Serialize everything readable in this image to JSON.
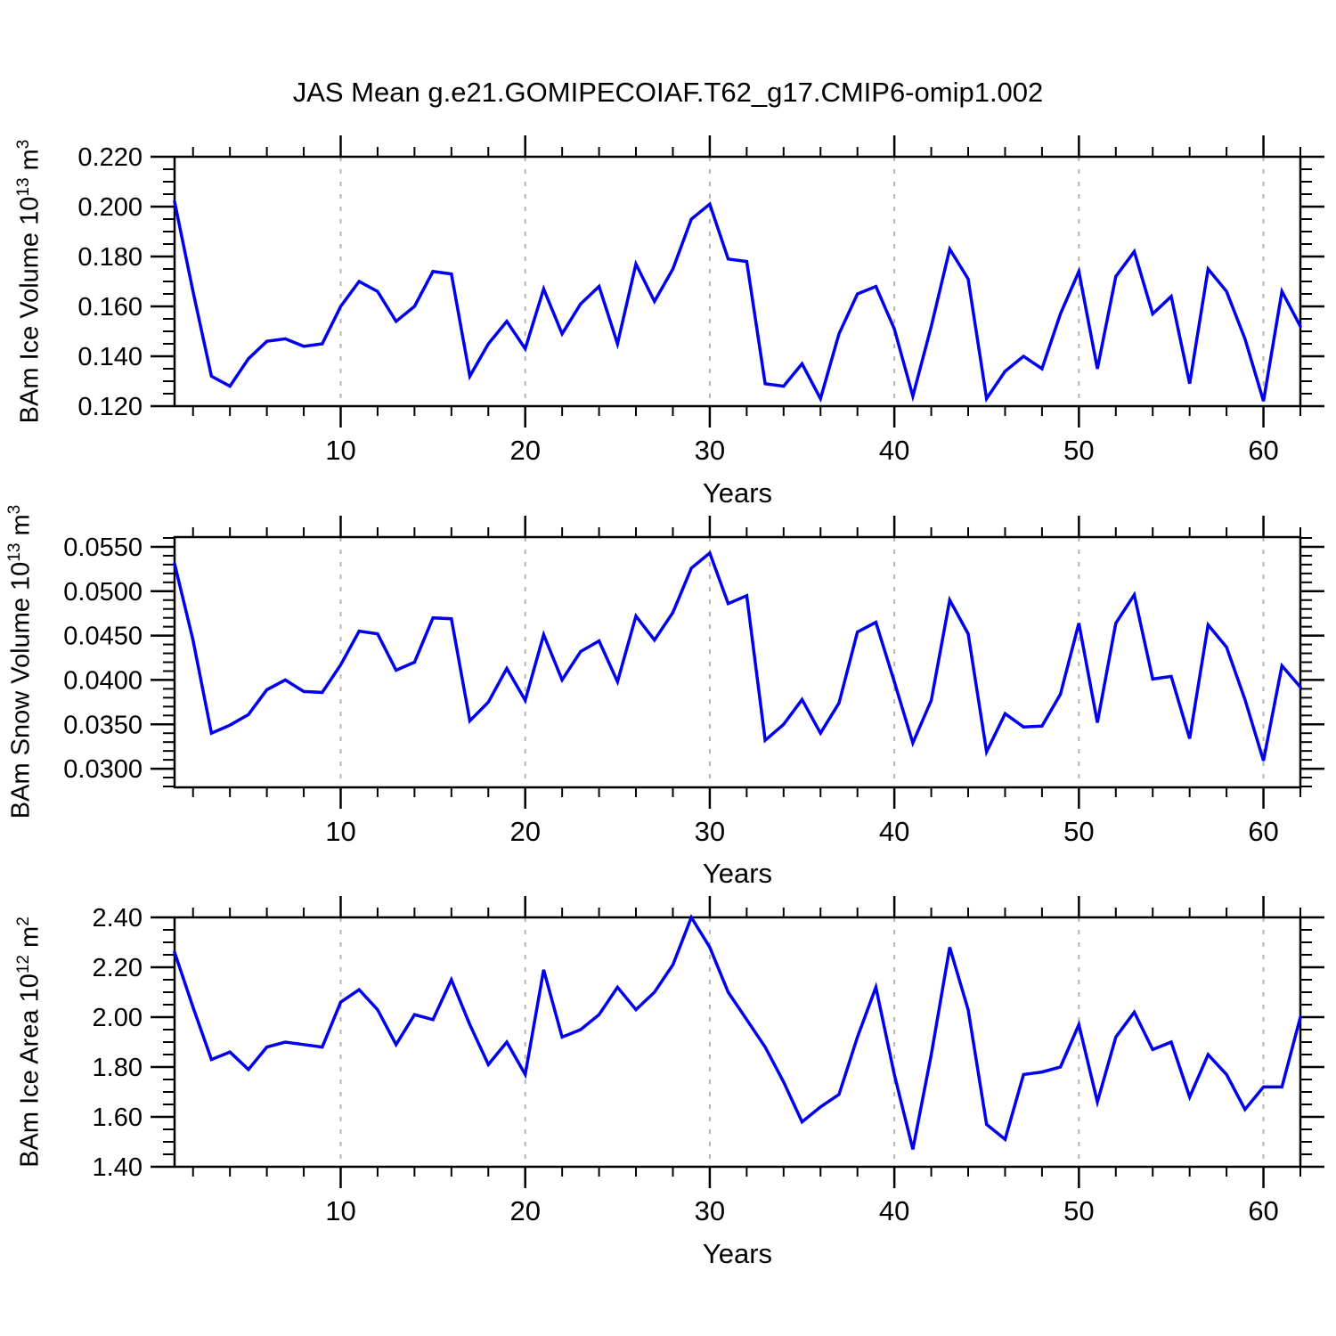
{
  "title": "JAS Mean g.e21.GOMIPECOIAF.T62_g17.CMIP6-omip1.002",
  "colors": {
    "line": "#0000ee",
    "axis": "#000000",
    "grid": "#b4b4b4",
    "background": "#ffffff"
  },
  "chart_data": [
    {
      "type": "line",
      "id": "ice-volume",
      "ylabel_parts": [
        {
          "t": "BAm Ice Volume 10"
        },
        {
          "t": "13",
          "sup": true
        },
        {
          "t": " m"
        },
        {
          "t": "3",
          "sup": true
        }
      ],
      "xlabel": "Years",
      "x_start": 1,
      "x_end": 62,
      "xticks": [
        10,
        20,
        30,
        40,
        50,
        60
      ],
      "x_minor_step": 2,
      "grid_x": [
        10,
        20,
        30,
        40,
        50,
        60
      ],
      "ylim": [
        0.12,
        0.22
      ],
      "ytick_values": [
        0.12,
        0.14,
        0.16,
        0.18,
        0.2,
        0.22
      ],
      "ytick_labels": [
        "0.120",
        "0.140",
        "0.160",
        "0.180",
        "0.200",
        "0.220"
      ],
      "y_minor_step": 0.005,
      "values": [
        0.202,
        0.166,
        0.132,
        0.128,
        0.139,
        0.146,
        0.147,
        0.144,
        0.145,
        0.16,
        0.17,
        0.166,
        0.154,
        0.16,
        0.174,
        0.173,
        0.132,
        0.145,
        0.154,
        0.143,
        0.167,
        0.149,
        0.161,
        0.168,
        0.145,
        0.177,
        0.162,
        0.175,
        0.195,
        0.201,
        0.179,
        0.178,
        0.129,
        0.128,
        0.137,
        0.123,
        0.149,
        0.165,
        0.168,
        0.151,
        0.124,
        0.152,
        0.183,
        0.171,
        0.123,
        0.134,
        0.14,
        0.135,
        0.157,
        0.174,
        0.135,
        0.172,
        0.182,
        0.157,
        0.164,
        0.129,
        0.175,
        0.166,
        0.147,
        0.122,
        0.166,
        0.152
      ]
    },
    {
      "type": "line",
      "id": "snow-volume",
      "ylabel_parts": [
        {
          "t": "BAm Snow Volume 10"
        },
        {
          "t": "13",
          "sup": true
        },
        {
          "t": " m"
        },
        {
          "t": "3",
          "sup": true
        }
      ],
      "xlabel": "Years",
      "x_start": 1,
      "x_end": 62,
      "xticks": [
        10,
        20,
        30,
        40,
        50,
        60
      ],
      "x_minor_step": 2,
      "grid_x": [
        10,
        20,
        30,
        40,
        50,
        60
      ],
      "ylim": [
        0.0279,
        0.0561
      ],
      "ytick_values": [
        0.03,
        0.035,
        0.04,
        0.045,
        0.05,
        0.055
      ],
      "ytick_labels": [
        "0.0300",
        "0.0350",
        "0.0400",
        "0.0450",
        "0.0500",
        "0.0550"
      ],
      "y_minor_step": 0.001,
      "values": [
        0.0531,
        0.0445,
        0.034,
        0.0349,
        0.0361,
        0.0389,
        0.04,
        0.0387,
        0.0386,
        0.0417,
        0.0455,
        0.0452,
        0.0411,
        0.042,
        0.047,
        0.0469,
        0.0354,
        0.0375,
        0.0413,
        0.0377,
        0.0451,
        0.04,
        0.0432,
        0.0444,
        0.0398,
        0.0472,
        0.0445,
        0.0476,
        0.0526,
        0.0543,
        0.0486,
        0.0495,
        0.0332,
        0.035,
        0.0378,
        0.034,
        0.0374,
        0.0454,
        0.0465,
        0.0398,
        0.0329,
        0.0377,
        0.049,
        0.0452,
        0.0319,
        0.0362,
        0.0347,
        0.0348,
        0.0384,
        0.0464,
        0.0352,
        0.0464,
        0.0496,
        0.0401,
        0.0404,
        0.0334,
        0.0462,
        0.0437,
        0.0378,
        0.0309,
        0.0416,
        0.0392
      ]
    },
    {
      "type": "line",
      "id": "ice-area",
      "ylabel_parts": [
        {
          "t": "BAm Ice Area 10"
        },
        {
          "t": "12",
          "sup": true
        },
        {
          "t": " m"
        },
        {
          "t": "2",
          "sup": true
        }
      ],
      "xlabel": "Years",
      "x_start": 1,
      "x_end": 62,
      "xticks": [
        10,
        20,
        30,
        40,
        50,
        60
      ],
      "x_minor_step": 2,
      "grid_x": [
        10,
        20,
        30,
        40,
        50,
        60
      ],
      "ylim": [
        1.4,
        2.4
      ],
      "ytick_values": [
        1.4,
        1.6,
        1.8,
        2.0,
        2.2,
        2.4
      ],
      "ytick_labels": [
        "1.40",
        "1.60",
        "1.80",
        "2.00",
        "2.20",
        "2.40"
      ],
      "y_minor_step": 0.05,
      "values": [
        2.26,
        2.04,
        1.83,
        1.86,
        1.79,
        1.88,
        1.9,
        1.89,
        1.88,
        2.06,
        2.11,
        2.03,
        1.89,
        2.01,
        1.99,
        2.15,
        1.97,
        1.81,
        1.9,
        1.77,
        2.19,
        1.92,
        1.95,
        2.01,
        2.12,
        2.03,
        2.1,
        2.21,
        2.4,
        2.28,
        2.1,
        1.99,
        1.88,
        1.74,
        1.58,
        1.64,
        1.69,
        1.92,
        2.12,
        1.77,
        1.47,
        1.85,
        2.28,
        2.03,
        1.57,
        1.51,
        1.77,
        1.78,
        1.8,
        1.97,
        1.66,
        1.92,
        2.02,
        1.87,
        1.9,
        1.68,
        1.85,
        1.77,
        1.63,
        1.72,
        1.72,
        2.0
      ]
    }
  ]
}
